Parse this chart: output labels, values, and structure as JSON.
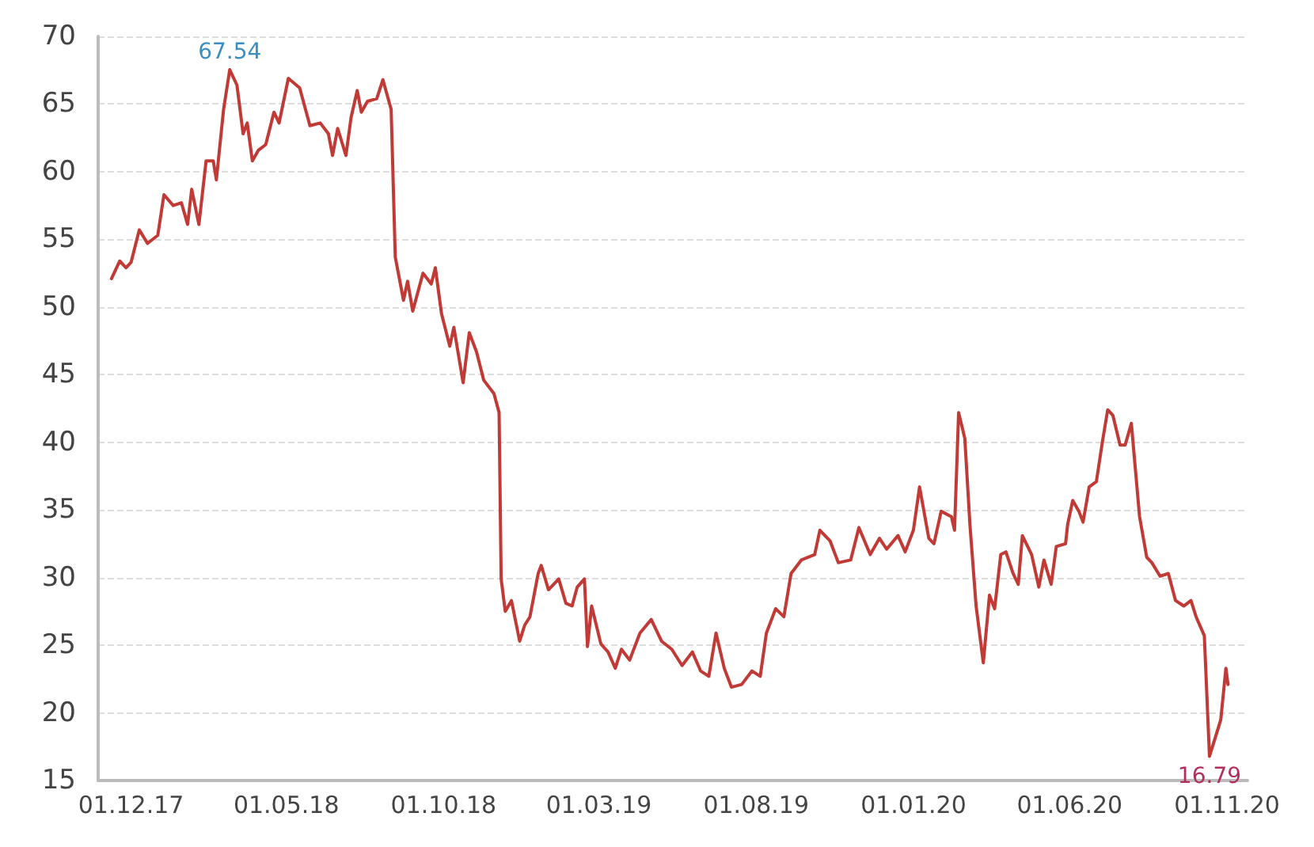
{
  "chart_data": {
    "type": "line",
    "x": [
      "2017-11-12",
      "2017-11-20",
      "2017-11-26",
      "2017-12-01",
      "2017-12-09",
      "2017-12-17",
      "2017-12-27",
      "2018-01-02",
      "2018-01-11",
      "2018-01-19",
      "2018-01-25",
      "2018-01-29",
      "2018-02-05",
      "2018-02-12",
      "2018-02-19",
      "2018-02-22",
      "2018-03-01",
      "2018-03-07",
      "2018-03-14",
      "2018-03-20",
      "2018-03-24",
      "2018-03-29",
      "2018-04-04",
      "2018-04-11",
      "2018-04-19",
      "2018-04-24",
      "2018-05-03",
      "2018-05-14",
      "2018-05-24",
      "2018-06-03",
      "2018-06-11",
      "2018-06-15",
      "2018-06-20",
      "2018-06-28",
      "2018-07-03",
      "2018-07-09",
      "2018-07-13",
      "2018-07-19",
      "2018-07-28",
      "2018-08-03",
      "2018-08-11",
      "2018-08-15",
      "2018-08-23",
      "2018-08-27",
      "2018-09-01",
      "2018-09-11",
      "2018-09-19",
      "2018-09-23",
      "2018-09-29",
      "2018-10-07",
      "2018-10-11",
      "2018-10-20",
      "2018-10-26",
      "2018-11-02",
      "2018-11-09",
      "2018-11-19",
      "2018-11-24",
      "2018-11-26",
      "2018-11-30",
      "2018-12-06",
      "2018-12-14",
      "2018-12-19",
      "2018-12-24",
      "2019-01-01",
      "2019-01-04",
      "2019-01-11",
      "2019-01-21",
      "2019-01-28",
      "2019-02-03",
      "2019-02-08",
      "2019-02-15",
      "2019-02-18",
      "2019-02-22",
      "2019-03-03",
      "2019-03-10",
      "2019-03-17",
      "2019-03-23",
      "2019-03-31",
      "2019-04-10",
      "2019-04-21",
      "2019-05-01",
      "2019-05-11",
      "2019-05-21",
      "2019-05-31",
      "2019-06-08",
      "2019-06-16",
      "2019-06-23",
      "2019-07-01",
      "2019-07-08",
      "2019-07-18",
      "2019-07-28",
      "2019-08-05",
      "2019-08-11",
      "2019-08-20",
      "2019-08-28",
      "2019-09-04",
      "2019-09-14",
      "2019-09-27",
      "2019-10-02",
      "2019-10-12",
      "2019-10-20",
      "2019-11-01",
      "2019-11-09",
      "2019-11-20",
      "2019-11-29",
      "2019-12-06",
      "2019-12-17",
      "2019-12-24",
      "2020-01-01",
      "2020-01-07",
      "2020-01-16",
      "2020-01-21",
      "2020-01-28",
      "2020-02-07",
      "2020-02-10",
      "2020-02-14",
      "2020-02-20",
      "2020-02-25",
      "2020-03-02",
      "2020-03-09",
      "2020-03-15",
      "2020-03-20",
      "2020-03-26",
      "2020-03-31",
      "2020-04-07",
      "2020-04-12",
      "2020-04-16",
      "2020-04-25",
      "2020-05-02",
      "2020-05-07",
      "2020-05-14",
      "2020-05-19",
      "2020-05-28",
      "2020-05-30",
      "2020-06-04",
      "2020-06-10",
      "2020-06-14",
      "2020-06-20",
      "2020-06-27",
      "2020-07-03",
      "2020-07-08",
      "2020-07-13",
      "2020-07-20",
      "2020-07-25",
      "2020-07-31",
      "2020-08-08",
      "2020-08-15",
      "2020-08-20",
      "2020-08-28",
      "2020-09-05",
      "2020-09-12",
      "2020-09-20",
      "2020-09-27",
      "2020-10-02",
      "2020-10-10",
      "2020-10-15",
      "2020-10-22",
      "2020-10-26",
      "2020-10-31",
      "2020-11-02"
    ],
    "series": [
      {
        "color": "#c23a35",
        "values": [
          52.1,
          53.4,
          52.9,
          53.3,
          55.7,
          54.7,
          55.3,
          58.3,
          57.5,
          57.7,
          56.1,
          58.7,
          56.1,
          60.8,
          60.8,
          59.4,
          64.6,
          67.54,
          66.4,
          62.8,
          63.6,
          60.8,
          61.6,
          62.0,
          64.4,
          63.6,
          66.9,
          66.2,
          63.4,
          63.6,
          62.8,
          61.2,
          63.2,
          61.2,
          64.0,
          66.0,
          64.4,
          65.2,
          65.4,
          66.8,
          64.6,
          53.7,
          50.5,
          51.9,
          49.7,
          52.5,
          51.7,
          52.9,
          49.5,
          47.1,
          48.5,
          44.4,
          48.1,
          46.7,
          44.6,
          43.6,
          42.2,
          29.9,
          27.5,
          28.3,
          25.3,
          26.5,
          27.1,
          30.3,
          30.9,
          29.1,
          29.9,
          28.1,
          27.9,
          29.3,
          29.9,
          24.9,
          27.9,
          25.1,
          24.5,
          23.3,
          24.7,
          23.9,
          25.9,
          26.9,
          25.3,
          24.7,
          23.5,
          24.5,
          23.1,
          22.7,
          25.9,
          23.3,
          21.9,
          22.1,
          23.1,
          22.7,
          25.9,
          27.7,
          27.1,
          30.3,
          31.3,
          31.7,
          33.5,
          32.7,
          31.1,
          31.3,
          33.7,
          31.7,
          32.9,
          32.1,
          33.1,
          31.9,
          33.5,
          36.7,
          32.9,
          32.5,
          34.9,
          34.5,
          33.5,
          42.2,
          40.3,
          33.9,
          27.9,
          23.7,
          28.7,
          27.7,
          31.7,
          31.9,
          30.3,
          29.5,
          33.1,
          31.7,
          29.3,
          31.3,
          29.5,
          32.3,
          32.5,
          33.9,
          35.7,
          34.9,
          34.1,
          36.7,
          37.1,
          40.1,
          42.4,
          42.0,
          39.8,
          39.8,
          41.4,
          34.5,
          31.5,
          31.1,
          30.1,
          30.3,
          28.3,
          27.9,
          28.3,
          27.1,
          25.7,
          16.79,
          18.5,
          19.5,
          23.3,
          22.1
        ]
      }
    ],
    "annotations": [
      {
        "text": "67.54",
        "x": "2018-03-07",
        "y": 67.54
      },
      {
        "text": "16.79",
        "x": "2020-10-15",
        "y": 16.79
      }
    ],
    "xlim": [
      "2017-10-30",
      "2020-11-21"
    ],
    "xticks": [
      {
        "value": "2017-12-01",
        "label": "01.12.17"
      },
      {
        "value": "2018-05-01",
        "label": "01.05.18"
      },
      {
        "value": "2018-10-01",
        "label": "01.10.18"
      },
      {
        "value": "2019-03-01",
        "label": "01.03.19"
      },
      {
        "value": "2019-08-01",
        "label": "01.08.19"
      },
      {
        "value": "2020-01-01",
        "label": "01.01.20"
      },
      {
        "value": "2020-06-01",
        "label": "01.06.20"
      },
      {
        "value": "2020-11-01",
        "label": "01.11.20"
      }
    ],
    "ylim": [
      15,
      70
    ],
    "yticks": [
      15,
      20,
      25,
      30,
      35,
      40,
      45,
      50,
      55,
      60,
      65,
      70
    ],
    "grid": "y",
    "marker": "none",
    "line_style": "solid"
  }
}
